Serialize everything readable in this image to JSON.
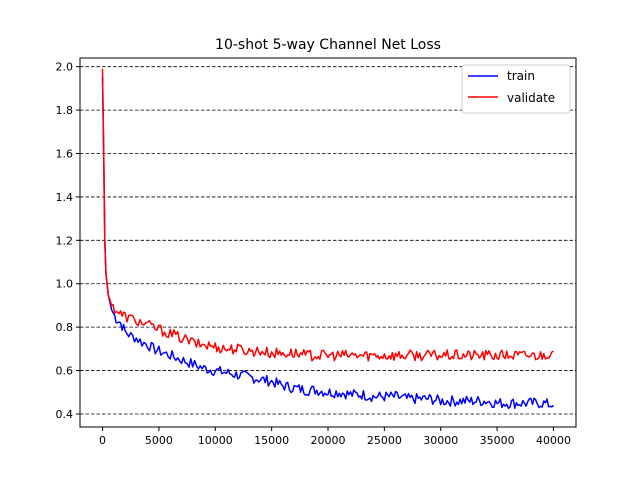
{
  "chart_data": {
    "type": "line",
    "title": "10-shot 5-way Channel Net Loss",
    "xlabel": "",
    "ylabel": "",
    "xlim": [
      -2000,
      42000
    ],
    "ylim": [
      0.34,
      2.04
    ],
    "x_ticks": [
      0,
      5000,
      10000,
      15000,
      20000,
      25000,
      30000,
      35000,
      40000
    ],
    "y_ticks": [
      0.4,
      0.6,
      0.8,
      1.0,
      1.2,
      1.4,
      1.6,
      1.8,
      2.0
    ],
    "x_tick_labels": [
      "0",
      "5000",
      "10000",
      "15000",
      "20000",
      "25000",
      "30000",
      "35000",
      "40000"
    ],
    "y_tick_labels": [
      "0.4",
      "0.6",
      "0.8",
      "1.0",
      "1.2",
      "1.4",
      "1.6",
      "1.8",
      "2.0"
    ],
    "grid": "horizontal dashed",
    "legend_position": "top-right",
    "series": [
      {
        "name": "train",
        "color": "#0000ff",
        "x": [
          0,
          100,
          200,
          300,
          500,
          800,
          1200,
          1600,
          2000,
          2500,
          3000,
          3500,
          4000,
          4500,
          5000,
          5500,
          6000,
          6500,
          7000,
          7500,
          8000,
          8500,
          9000,
          10000,
          11000,
          12000,
          13000,
          14000,
          15000,
          16000,
          17000,
          18000,
          19000,
          20000,
          21000,
          22000,
          23000,
          24000,
          25000,
          26000,
          27000,
          28000,
          29000,
          30000,
          31000,
          32000,
          33000,
          34000,
          35000,
          36000,
          37000,
          38000,
          39000,
          40000
        ],
        "y": [
          1.95,
          1.6,
          1.2,
          1.05,
          0.95,
          0.88,
          0.84,
          0.82,
          0.78,
          0.76,
          0.75,
          0.73,
          0.72,
          0.7,
          0.69,
          0.68,
          0.67,
          0.66,
          0.65,
          0.64,
          0.63,
          0.62,
          0.61,
          0.6,
          0.59,
          0.58,
          0.57,
          0.56,
          0.55,
          0.53,
          0.52,
          0.51,
          0.51,
          0.5,
          0.5,
          0.49,
          0.49,
          0.48,
          0.48,
          0.48,
          0.47,
          0.47,
          0.47,
          0.46,
          0.46,
          0.46,
          0.46,
          0.46,
          0.45,
          0.45,
          0.45,
          0.45,
          0.45,
          0.44
        ]
      },
      {
        "name": "validate",
        "color": "#ff0000",
        "x": [
          0,
          100,
          200,
          300,
          500,
          800,
          1200,
          1600,
          2000,
          2500,
          3000,
          3500,
          4000,
          4500,
          5000,
          5500,
          6000,
          6500,
          7000,
          7500,
          8000,
          8500,
          9000,
          10000,
          11000,
          12000,
          13000,
          14000,
          15000,
          16000,
          17000,
          18000,
          19000,
          20000,
          21000,
          22000,
          23000,
          24000,
          25000,
          26000,
          27000,
          28000,
          29000,
          30000,
          31000,
          32000,
          33000,
          34000,
          35000,
          36000,
          37000,
          38000,
          39000,
          40000
        ],
        "y": [
          1.99,
          1.6,
          1.2,
          1.05,
          0.95,
          0.9,
          0.88,
          0.86,
          0.85,
          0.84,
          0.83,
          0.82,
          0.81,
          0.8,
          0.79,
          0.78,
          0.77,
          0.76,
          0.75,
          0.74,
          0.73,
          0.72,
          0.72,
          0.71,
          0.7,
          0.7,
          0.69,
          0.69,
          0.68,
          0.68,
          0.68,
          0.67,
          0.67,
          0.67,
          0.67,
          0.67,
          0.67,
          0.67,
          0.67,
          0.67,
          0.67,
          0.67,
          0.67,
          0.67,
          0.67,
          0.67,
          0.67,
          0.67,
          0.67,
          0.67,
          0.67,
          0.67,
          0.67,
          0.69
        ]
      }
    ]
  }
}
